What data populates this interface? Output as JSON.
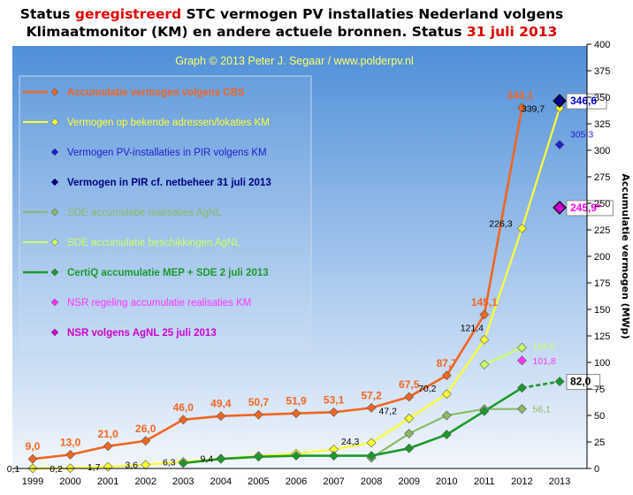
{
  "title": {
    "line1_pre": "Status ",
    "line1_red": "geregistreerd",
    "line1_post": " STC vermogen PV installaties  Nederland  volgens",
    "line2_pre": "Klimaatmonitor (KM) en andere actuele bronnen. Status ",
    "line2_red": "31 juli 2013"
  },
  "chart_data": {
    "type": "line",
    "credit": "Graph  © 2013  Peter J. Segaar / www.polderpv.nl",
    "ylabel": "Accumulatie vermogen (MWp)",
    "xlabel": "",
    "categories": [
      "1999",
      "2000",
      "2001",
      "2002",
      "2003",
      "2004",
      "2005",
      "2006",
      "2007",
      "2008",
      "2009",
      "2010",
      "2011",
      "2012",
      "2013"
    ],
    "ylim": [
      0,
      400
    ],
    "yticks": [
      0,
      25,
      50,
      75,
      100,
      125,
      150,
      175,
      200,
      225,
      250,
      275,
      300,
      325,
      350,
      375,
      400
    ],
    "grid": false,
    "legend_position": "upper-left inside plot",
    "colors": {
      "bg_top": "#4f8fd8",
      "bg_bottom": "#f2f6fb"
    },
    "series": [
      {
        "name": "Accumulatie vermogen volgens CBS",
        "color": "#f26522",
        "line": true,
        "marker": "diamond",
        "bold": true,
        "values": [
          9.0,
          13.0,
          21.0,
          26.0,
          46.0,
          49.4,
          50.7,
          51.9,
          53.1,
          57.2,
          67.5,
          87.7,
          145.1,
          340.1,
          null
        ],
        "labels": [
          "9,0",
          "13,0",
          "21,0",
          "26,0",
          "46,0",
          "49,4",
          "50,7",
          "51,9",
          "53,1",
          "57,2",
          "67,5",
          "87,7",
          "145,1",
          "340,1",
          ""
        ],
        "label_color": "#f26522"
      },
      {
        "name": "Vermogen op bekende adressen/lokaties KM",
        "color": "#ffff33",
        "line": true,
        "marker": "diamond",
        "bold": false,
        "values": [
          0.1,
          0.2,
          1.7,
          3.6,
          6.3,
          9.4,
          12.0,
          14.0,
          18.0,
          24.3,
          47.2,
          70.2,
          121.4,
          226.3,
          339.7
        ],
        "labels": [
          "0,1",
          "0,2",
          "1,7",
          "3,6",
          "6,3",
          "9,4",
          "",
          "",
          "",
          "24,3",
          "47,2",
          "70,2",
          "121,4",
          "226,3",
          "339,7"
        ],
        "label_color": "#000000"
      },
      {
        "name": "Vermogen PV-installaties in PIR volgens KM",
        "color": "#2020cc",
        "line": false,
        "marker": "diamond",
        "bold": false,
        "values": [
          null,
          null,
          null,
          null,
          null,
          null,
          null,
          null,
          null,
          null,
          null,
          null,
          null,
          null,
          305.3
        ],
        "labels": [
          "",
          "",
          "",
          "",
          "",
          "",
          "",
          "",
          "",
          "",
          "",
          "",
          "",
          "",
          "305,3"
        ],
        "label_color": "#2020cc"
      },
      {
        "name": "Vermogen in PIR cf. netbeheer 31 juli 2013",
        "color": "#000080",
        "line": false,
        "marker": "diamond-large",
        "bold": true,
        "values": [
          null,
          null,
          null,
          null,
          null,
          null,
          null,
          null,
          null,
          null,
          null,
          null,
          null,
          null,
          346.6
        ],
        "labels": [
          "",
          "",
          "",
          "",
          "",
          "",
          "",
          "",
          "",
          "",
          "",
          "",
          "",
          "",
          "346,6"
        ],
        "label_color": "#0000cc"
      },
      {
        "name": "SDE accumulatie realisaties AgNL",
        "color": "#88bb66",
        "line": true,
        "marker": "diamond",
        "bold": false,
        "values": [
          null,
          null,
          null,
          null,
          null,
          null,
          null,
          null,
          null,
          10.0,
          33.0,
          50.0,
          56.0,
          56.1,
          null
        ],
        "labels": [
          "",
          "",
          "",
          "",
          "",
          "",
          "",
          "",
          "",
          "",
          "",
          "",
          "",
          "56,1",
          ""
        ],
        "label_color": "#88bb66"
      },
      {
        "name": "SDE accumulatie beschikkingen AgNL",
        "color": "#ccff66",
        "line": true,
        "marker": "diamond",
        "bold": false,
        "values": [
          null,
          null,
          null,
          null,
          null,
          null,
          null,
          null,
          null,
          null,
          null,
          null,
          98.0,
          114.0,
          null
        ],
        "labels": [
          "",
          "",
          "",
          "",
          "",
          "",
          "",
          "",
          "",
          "",
          "",
          "",
          "",
          "114,0",
          ""
        ],
        "label_color": "#ccff66"
      },
      {
        "name": "CertiQ accumulatie MEP + SDE 2 juli 2013",
        "color": "#1a9a2a",
        "line": true,
        "marker": "diamond",
        "bold": true,
        "values": [
          null,
          null,
          null,
          null,
          5.0,
          9.0,
          11.0,
          12.0,
          12.0,
          12.0,
          19.0,
          32.0,
          54.0,
          76.0,
          82.0
        ],
        "labels": [
          "",
          "",
          "",
          "",
          "",
          "",
          "",
          "",
          "",
          "",
          "",
          "",
          "",
          "",
          "82,0"
        ],
        "label_color": "#000000"
      },
      {
        "name": "NSR regeling accumulatie realisaties KM",
        "color": "#ff33ff",
        "line": false,
        "marker": "diamond",
        "bold": false,
        "values": [
          null,
          null,
          null,
          null,
          null,
          null,
          null,
          null,
          null,
          null,
          null,
          null,
          null,
          101.8,
          null
        ],
        "labels": [
          "",
          "",
          "",
          "",
          "",
          "",
          "",
          "",
          "",
          "",
          "",
          "",
          "",
          "101,8",
          ""
        ],
        "label_color": "#ff33ff"
      },
      {
        "name": "NSR volgens AgNL 25 juli 2013",
        "color": "#cc00cc",
        "line": false,
        "marker": "diamond-large",
        "bold": true,
        "values": [
          null,
          null,
          null,
          null,
          null,
          null,
          null,
          null,
          null,
          null,
          null,
          null,
          null,
          null,
          245.9
        ],
        "labels": [
          "",
          "",
          "",
          "",
          "",
          "",
          "",
          "",
          "",
          "",
          "",
          "",
          "",
          "",
          "245,9*"
        ],
        "label_color": "#ff00ff"
      }
    ]
  }
}
